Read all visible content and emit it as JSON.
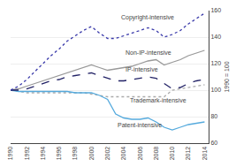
{
  "chart_data": {
    "type": "line",
    "y_label": "1990 = 100",
    "x": [
      1990,
      1991,
      1992,
      1993,
      1994,
      1995,
      1996,
      1997,
      1998,
      1999,
      2000,
      2001,
      2002,
      2003,
      2004,
      2005,
      2006,
      2007,
      2008,
      2009,
      2010,
      2011,
      2012,
      2013,
      2014
    ],
    "series": [
      {
        "name": "Trademark-intensive",
        "color": "#aaaaaa",
        "line_style": "dotted",
        "values": [
          100,
          99,
          98,
          98,
          98,
          98,
          98,
          98,
          98,
          98,
          97,
          96,
          95,
          95,
          95,
          95,
          95,
          95,
          95,
          95,
          100,
          101,
          102,
          103,
          104
        ]
      },
      {
        "name": "Non-IP-intensive",
        "color": "#999999",
        "line_style": "solid",
        "values": [
          100,
          101,
          103,
          105,
          107,
          109,
          111,
          113,
          115,
          117,
          119,
          117,
          115,
          116,
          117,
          118,
          120,
          122,
          123,
          119,
          121,
          123,
          126,
          128,
          130
        ]
      },
      {
        "name": "Patent-intensive",
        "color": "#55aadd",
        "line_style": "solid",
        "values": [
          100,
          99,
          99,
          99,
          99,
          99,
          99,
          99,
          98,
          98,
          98,
          96,
          93,
          82,
          79,
          78,
          78,
          79,
          76,
          72,
          70,
          72,
          74,
          75,
          76
        ]
      },
      {
        "name": "IP-intensive",
        "color": "#222266",
        "line_style": "dashed",
        "values": [
          100,
          100,
          101,
          103,
          105,
          107,
          108,
          110,
          111,
          112,
          113,
          111,
          109,
          107,
          107,
          108,
          109,
          110,
          109,
          105,
          101,
          102,
          105,
          107,
          108
        ]
      },
      {
        "name": "Copyright-intensive",
        "color": "#3a3aaa",
        "line_style": "dotted",
        "values": [
          100,
          103,
          108,
          114,
          120,
          126,
          131,
          137,
          141,
          145,
          148,
          143,
          139,
          139,
          141,
          143,
          145,
          147,
          145,
          140,
          142,
          145,
          150,
          154,
          158
        ]
      }
    ],
    "annotations": [
      {
        "text": "Copyright-intensive",
        "x": 2003.5,
        "y": 151
      },
      {
        "text": "Non-IP-intensive",
        "x": 2004.0,
        "y": 125
      },
      {
        "text": "IP-intensive",
        "x": 2004.0,
        "y": 112
      },
      {
        "text": "Trademark-intensive",
        "x": 2004.5,
        "y": 89
      },
      {
        "text": "Patent-intensive",
        "x": 2003.0,
        "y": 70
      }
    ],
    "xlim": [
      1990,
      2014.5
    ],
    "xticks": [
      1990,
      1992,
      1994,
      1996,
      1998,
      2000,
      2002,
      2004,
      2006,
      2008,
      2010,
      2012,
      2014
    ],
    "ylim": [
      60,
      160
    ],
    "yticks": [
      60,
      80,
      100,
      120,
      140,
      160
    ],
    "grid": true
  }
}
